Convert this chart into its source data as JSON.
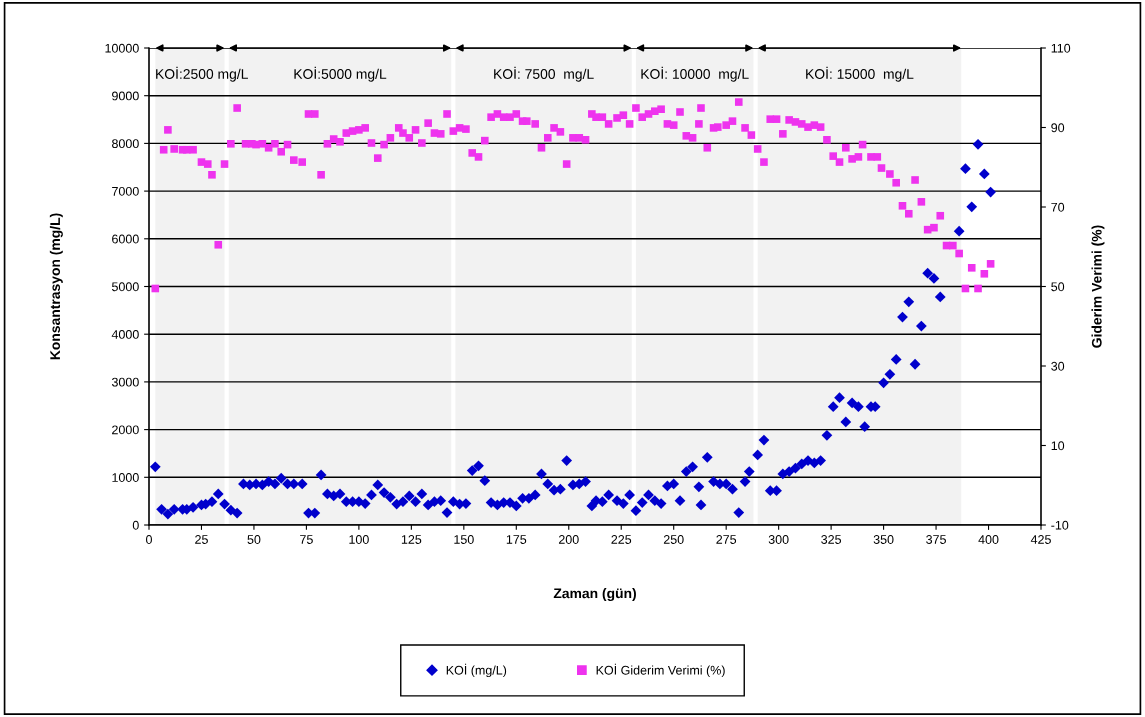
{
  "chart_data": {
    "type": "scatter",
    "xlabel": "Zaman (gün)",
    "ylabel": "Konsantrasyon (mg/L)",
    "y2label": "Giderim Verimi (%)",
    "xlim": [
      0,
      425
    ],
    "xticks": [
      0,
      25,
      50,
      75,
      100,
      125,
      150,
      175,
      200,
      225,
      250,
      275,
      300,
      325,
      350,
      375,
      400,
      425
    ],
    "ylim": [
      0,
      10000
    ],
    "yticks": [
      0,
      1000,
      2000,
      3000,
      4000,
      5000,
      6000,
      7000,
      8000,
      9000,
      10000
    ],
    "y2lim": [
      -10,
      110
    ],
    "y2ticks": [
      -10,
      10,
      30,
      50,
      70,
      90,
      110
    ],
    "grid": "y",
    "legend": "bottom",
    "bands": [
      {
        "axis": "x",
        "from": 3,
        "to": 36,
        "label": "KOİ:2500 mg/L"
      },
      {
        "axis": "x",
        "from": 38,
        "to": 144,
        "label": "KOİ:5000 mg/L"
      },
      {
        "axis": "x",
        "from": 146,
        "to": 230,
        "label": "KOİ: 7500  mg/L"
      },
      {
        "axis": "x",
        "from": 232,
        "to": 288,
        "label": "KOİ: 10000  mg/L"
      },
      {
        "axis": "x",
        "from": 290,
        "to": 387,
        "label": "KOİ: 15000  mg/L"
      }
    ],
    "series": [
      {
        "name": "KOİ (mg/L)",
        "color": "#0000cc",
        "marker": "diamond",
        "x": [
          3,
          6,
          9,
          12,
          16,
          18,
          21,
          25,
          27,
          30,
          33,
          36,
          39,
          42,
          45,
          48,
          51,
          54,
          57,
          60,
          63,
          66,
          69,
          73,
          76,
          79,
          82,
          85,
          88,
          91,
          94,
          97,
          100,
          103,
          106,
          109,
          112,
          115,
          118,
          121,
          124,
          127,
          130,
          133,
          136,
          139,
          142,
          145,
          148,
          151,
          154,
          157,
          160,
          163,
          166,
          169,
          172,
          175,
          178,
          181,
          184,
          187,
          190,
          193,
          196,
          199,
          202,
          205,
          208,
          211,
          213,
          216,
          219,
          223,
          226,
          229,
          232,
          235,
          238,
          241,
          244,
          247,
          250,
          253,
          256,
          259,
          262,
          263,
          266,
          269,
          272,
          275,
          278,
          281,
          284,
          286,
          290,
          293,
          296,
          299,
          302,
          305,
          308,
          311,
          314,
          317,
          320,
          323,
          326,
          329,
          332,
          335,
          338,
          341,
          344,
          346,
          350,
          353,
          356,
          359,
          362,
          365,
          368,
          371,
          374,
          377,
          386,
          389,
          392,
          395,
          398,
          401
        ],
        "values": [
          1220,
          330,
          230,
          330,
          330,
          330,
          370,
          420,
          440,
          490,
          650,
          440,
          310,
          250,
          860,
          840,
          860,
          840,
          910,
          860,
          980,
          860,
          860,
          860,
          250,
          250,
          1050,
          650,
          610,
          650,
          490,
          490,
          490,
          450,
          630,
          840,
          680,
          580,
          440,
          490,
          610,
          490,
          650,
          420,
          490,
          510,
          260,
          490,
          440,
          450,
          1140,
          1240,
          930,
          470,
          420,
          470,
          470,
          400,
          560,
          560,
          630,
          1070,
          860,
          730,
          750,
          1350,
          840,
          860,
          910,
          400,
          510,
          490,
          630,
          510,
          450,
          630,
          300,
          470,
          630,
          510,
          450,
          820,
          860,
          510,
          1120,
          1220,
          800,
          420,
          1420,
          910,
          860,
          860,
          750,
          260,
          910,
          1120,
          1470,
          1780,
          720,
          720,
          1070,
          1120,
          1190,
          1280,
          1350,
          1300,
          1350,
          1880,
          2480,
          2670,
          2160,
          2560,
          2480,
          2060,
          2480,
          2480,
          2980,
          3160,
          3470,
          4360,
          4680,
          3370,
          4170,
          5280,
          5170,
          4780,
          6160,
          7470,
          6670,
          7980,
          7360,
          6980
        ]
      },
      {
        "name": "KOİ Giderim Verimi (%)",
        "color": "#ee33ee",
        "marker": "square",
        "axis": "y2",
        "x": [
          3,
          7,
          9,
          12,
          16,
          18,
          21,
          25,
          28,
          30,
          33,
          36,
          39,
          42,
          46,
          49,
          51,
          54,
          57,
          60,
          63,
          66,
          69,
          73,
          76,
          79,
          82,
          85,
          88,
          91,
          94,
          97,
          100,
          103,
          106,
          109,
          112,
          115,
          119,
          121,
          124,
          127,
          130,
          133,
          136,
          139,
          142,
          145,
          148,
          151,
          154,
          157,
          160,
          163,
          166,
          169,
          172,
          175,
          178,
          180,
          184,
          187,
          190,
          193,
          196,
          199,
          202,
          205,
          208,
          211,
          213,
          216,
          219,
          223,
          226,
          229,
          232,
          235,
          238,
          241,
          244,
          247,
          250,
          253,
          256,
          259,
          262,
          263,
          266,
          269,
          271,
          275,
          278,
          281,
          284,
          287,
          290,
          293,
          296,
          299,
          302,
          305,
          308,
          311,
          314,
          317,
          320,
          323,
          326,
          329,
          332,
          335,
          338,
          340,
          344,
          347,
          349,
          353,
          356,
          359,
          362,
          365,
          368,
          371,
          374,
          377,
          380,
          383,
          386,
          389,
          392,
          395,
          398,
          401
        ],
        "values": [
          49.5,
          84.4,
          89.4,
          84.6,
          84.4,
          84.4,
          84.4,
          81.3,
          80.8,
          78.1,
          60.5,
          80.8,
          85.9,
          94.9,
          85.9,
          85.9,
          85.7,
          85.9,
          84.9,
          85.9,
          83.9,
          85.7,
          81.8,
          81.3,
          93.4,
          93.4,
          78.1,
          85.9,
          87.1,
          86.4,
          88.6,
          89.1,
          89.4,
          89.9,
          86.1,
          82.3,
          85.7,
          87.4,
          89.9,
          88.6,
          87.4,
          89.4,
          86.1,
          91.1,
          88.6,
          88.4,
          93.4,
          89.1,
          89.9,
          89.6,
          83.6,
          82.6,
          86.7,
          92.6,
          93.4,
          92.6,
          92.6,
          93.4,
          91.6,
          91.6,
          90.9,
          84.9,
          87.4,
          89.9,
          88.9,
          80.8,
          87.4,
          87.4,
          86.9,
          93.4,
          92.6,
          92.6,
          90.9,
          92.4,
          93.1,
          90.9,
          94.9,
          92.6,
          93.4,
          94.1,
          94.6,
          90.9,
          90.6,
          93.9,
          87.9,
          87.4,
          90.9,
          94.9,
          84.9,
          89.9,
          90.1,
          90.6,
          91.6,
          96.4,
          89.9,
          88.1,
          84.6,
          81.3,
          92.1,
          92.1,
          88.4,
          91.9,
          91.4,
          90.9,
          90.1,
          90.6,
          90.1,
          86.9,
          82.8,
          81.3,
          84.9,
          82.1,
          82.6,
          85.7,
          82.6,
          82.6,
          79.8,
          78.3,
          76.1,
          70.3,
          68.3,
          76.8,
          71.3,
          64.3,
          64.8,
          67.8,
          60.3,
          60.3,
          58.3,
          49.5,
          54.7,
          49.5,
          53.2,
          55.7
        ]
      }
    ]
  }
}
